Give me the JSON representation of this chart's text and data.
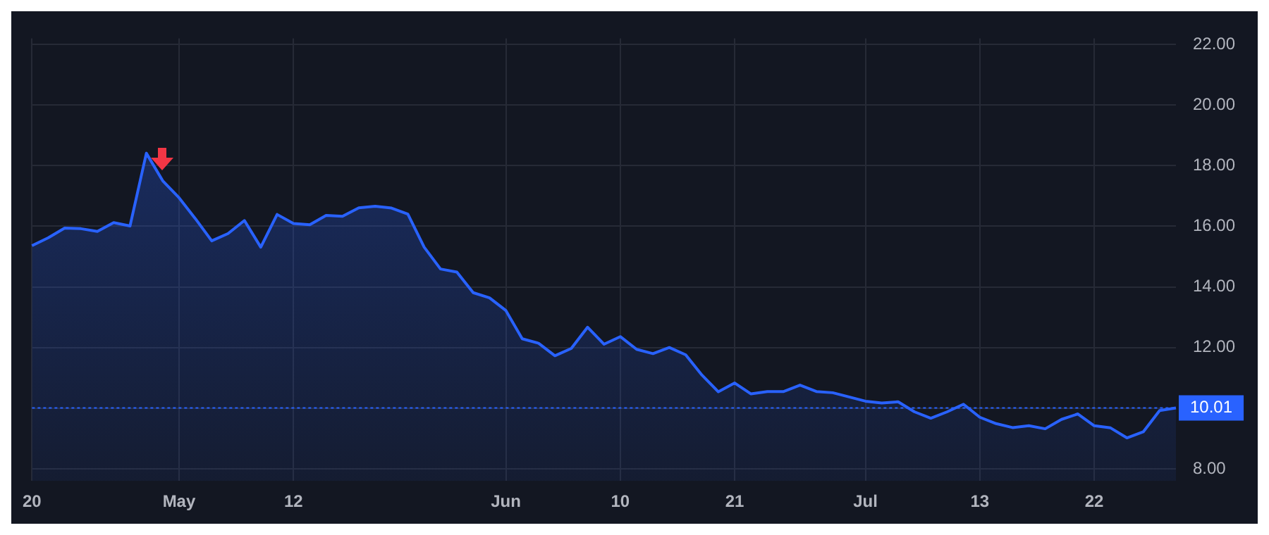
{
  "chart_data": {
    "type": "area",
    "categories": [
      "20",
      null,
      null,
      null,
      null,
      null,
      null,
      null,
      null,
      "May",
      null,
      null,
      null,
      null,
      null,
      null,
      "12",
      null,
      null,
      null,
      null,
      null,
      null,
      null,
      null,
      null,
      null,
      null,
      null,
      "Jun",
      null,
      null,
      null,
      null,
      null,
      null,
      "10",
      null,
      null,
      null,
      null,
      null,
      null,
      "21",
      null,
      null,
      null,
      null,
      null,
      null,
      null,
      "Jul",
      null,
      null,
      null,
      null,
      null,
      null,
      "13",
      null,
      null,
      null,
      null,
      null,
      null,
      "22",
      null,
      null,
      null,
      null,
      null
    ],
    "series": [
      {
        "color": "#2962ff",
        "values": [
          15.36,
          15.62,
          15.94,
          15.92,
          15.83,
          16.12,
          16.01,
          18.41,
          17.5,
          16.94,
          16.25,
          15.52,
          15.76,
          16.19,
          15.31,
          16.39,
          16.09,
          16.05,
          16.36,
          16.33,
          16.61,
          16.66,
          16.6,
          16.4,
          15.31,
          14.59,
          14.49,
          13.81,
          13.64,
          13.22,
          12.29,
          12.14,
          11.73,
          11.97,
          12.67,
          12.11,
          12.36,
          11.94,
          11.8,
          12.0,
          11.76,
          11.09,
          10.54,
          10.83,
          10.47,
          10.55,
          10.55,
          10.76,
          10.55,
          10.51,
          10.37,
          10.23,
          10.17,
          10.21,
          9.88,
          9.67,
          9.88,
          10.13,
          9.7,
          9.49,
          9.36,
          9.42,
          9.32,
          9.63,
          9.81,
          9.42,
          9.35,
          9.02,
          9.22,
          9.92,
          10.01
        ]
      }
    ],
    "ylim": [
      7.6,
      22.2
    ],
    "yticks": [
      {
        "value": 8,
        "label": "8.00"
      },
      {
        "value": 10,
        "label": null
      },
      {
        "value": 12,
        "label": "12.00"
      },
      {
        "value": 14,
        "label": "14.00"
      },
      {
        "value": 16,
        "label": "16.00"
      },
      {
        "value": 18,
        "label": "18.00"
      },
      {
        "value": 20,
        "label": "20.00"
      },
      {
        "value": 22,
        "label": "22.00"
      }
    ],
    "ref_lines": [
      {
        "axis": "y",
        "value": 10.01,
        "label": "10.01",
        "color": "#2962ff",
        "line_style": "dotted"
      }
    ],
    "grid": true,
    "legend": false,
    "marker": "none",
    "line_style": "solid"
  }
}
